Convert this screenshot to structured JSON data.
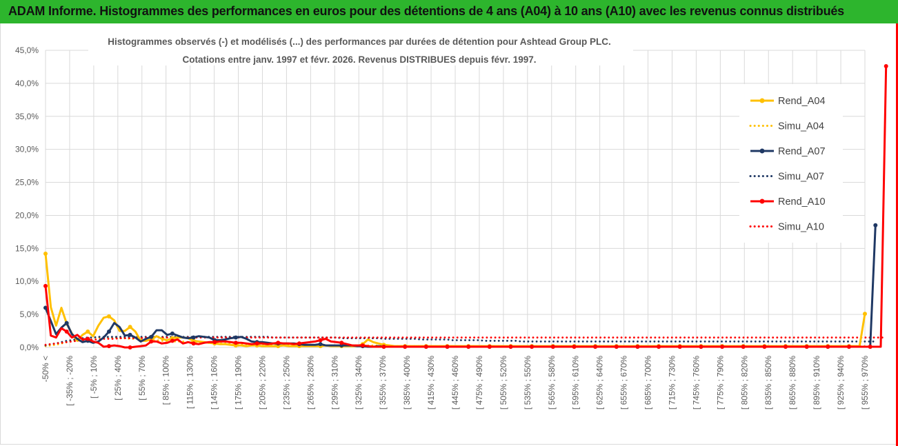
{
  "header": {
    "title": "ADAM Informe. Histogrammes des performances en euros pour des détentions de 4 ans (A04) à 10 ans (A10) avec les revenus connus distribués"
  },
  "colors": {
    "banner": "#2db52d",
    "accent_border": "#ff0000",
    "A04": "#ffc000",
    "A07": "#1f3864",
    "A10": "#ff0000"
  },
  "chart_data": {
    "type": "line",
    "title_line1": "Histogrammes observés (-) et modélisés (...) des performances par durées de détention pour Ashtead Group PLC.",
    "title_line2": "Cotations entre janv. 1997 et févr. 2026. Revenus DISTRIBUES depuis févr. 1997.",
    "ylim": [
      0,
      45
    ],
    "yticks": [
      "0,0%",
      "5,0%",
      "10,0%",
      "15,0%",
      "20,0%",
      "25,0%",
      "30,0%",
      "35,0%",
      "40,0%",
      "45,0%"
    ],
    "grid": true,
    "legend_position": "right",
    "x_tick_labels": [
      "-50% <",
      "[ -35% ; -20%",
      "[ -5% ; 10%",
      "[ 25% ; 40%",
      "[ 55% ; 70%",
      "[ 85% ; 100%",
      "[ 115% ; 130%",
      "[ 145% ; 160%",
      "[ 175% ; 190%",
      "[ 205% ; 220%",
      "[ 235% ; 250%",
      "[ 265% ; 280%",
      "[ 295% ; 310%",
      "[ 325% ; 340%",
      "[ 355% ; 370%",
      "[ 385% ; 400%",
      "[ 415% ; 430%",
      "[ 445% ; 460%",
      "[ 475% ; 490%",
      "[ 505% ; 520%",
      "[ 535% ; 550%",
      "[ 565% ; 580%",
      "[ 595% ; 610%",
      "[ 625% ; 640%",
      "[ 655% ; 670%",
      "[ 685% ; 700%",
      "[ 715% ; 730%",
      "[ 745% ; 760%",
      "[ 775% ; 790%",
      "[ 805% ; 820%",
      "[ 835% ; 850%",
      "[ 865% ; 880%",
      "[ 895% ; 910%",
      "[ 925% ; 940%",
      "[ 955% ; 970%"
    ],
    "series": [
      {
        "name": "Rend_A04",
        "style": "solid",
        "color": "#ffc000",
        "values": [
          14.2,
          6.1,
          3.3,
          6.0,
          3.6,
          2.1,
          1.0,
          1.9,
          2.4,
          1.7,
          3.3,
          4.5,
          4.7,
          4.1,
          2.5,
          2.5,
          3.1,
          2.4,
          1.0,
          1.0,
          1.2,
          1.7,
          1.3,
          1.1,
          1.4,
          1.5,
          1.5,
          1.4,
          1.0,
          0.9,
          0.8,
          0.7,
          0.6,
          0.5,
          0.5,
          0.4,
          0.3,
          0.3,
          0.2,
          0.3,
          0.3,
          0.2,
          0.2,
          0.2,
          0.2,
          0.3,
          0.2,
          0.2,
          0.2,
          0.2,
          0.2,
          0.2,
          0.2,
          0.3,
          0.2,
          0.2,
          0.2,
          0.2,
          0.2,
          0.2,
          0.5,
          1.2,
          0.8,
          0.6,
          0.4,
          0.3,
          0.2,
          0.2,
          0.2,
          0.2,
          0.2,
          0.2,
          0.2,
          0.2,
          0.2,
          0.2,
          0.2,
          0.2,
          0.2,
          0.2,
          0.2,
          0.2,
          0.2,
          0.2,
          0.2,
          0.2,
          0.2,
          0.2,
          0.2,
          0.2,
          0.2,
          0.2,
          0.2,
          0.2,
          0.2,
          0.2,
          0.2,
          0.2,
          0.2,
          0.2,
          0.2,
          0.2,
          0.2,
          0.2,
          0.2,
          0.2,
          0.2,
          0.2,
          0.2,
          0.2,
          0.2,
          0.2,
          0.2,
          0.2,
          0.2,
          0.2,
          0.2,
          0.2,
          0.2,
          0.2,
          0.2,
          0.2,
          0.2,
          0.2,
          0.2,
          0.2,
          0.2,
          0.2,
          0.2,
          0.2,
          0.2,
          0.2,
          0.2,
          0.2,
          0.2,
          0.2,
          0.2,
          0.2,
          0.2,
          0.2,
          0.2,
          0.2,
          0.2,
          0.2,
          0.2,
          0.2,
          0.2,
          0.2,
          0.2,
          0.2,
          0.2,
          0.2,
          0.2,
          0.2,
          0.2,
          5.1
        ]
      },
      {
        "name": "Simu_A04",
        "style": "dotted",
        "color": "#ffc000",
        "values": [
          0.2,
          0.3,
          0.4,
          0.6,
          0.8,
          1.0,
          1.2,
          1.3,
          1.4,
          1.5,
          1.5,
          1.5,
          1.5,
          1.5,
          1.4,
          1.4,
          1.3,
          1.3,
          1.2,
          1.2,
          1.1,
          1.1,
          1.0,
          1.0,
          0.9,
          0.9,
          0.9,
          0.8,
          0.8,
          0.8,
          0.7,
          0.7,
          0.7,
          0.6,
          0.6,
          0.6,
          0.6,
          0.5,
          0.5,
          0.5,
          0.5,
          0.5,
          0.5,
          0.4,
          0.4,
          0.4,
          0.4,
          0.4,
          0.4,
          0.4,
          0.4,
          0.3,
          0.3,
          0.3,
          0.3,
          0.3,
          0.3,
          0.3,
          0.3,
          0.3,
          0.3,
          0.3,
          0.3,
          0.3,
          0.3,
          0.3,
          0.2,
          0.2,
          0.2,
          0.2,
          0.2,
          0.2,
          0.2,
          0.2,
          0.2,
          0.2,
          0.2,
          0.2,
          0.2,
          0.2,
          0.2,
          0.2,
          0.2,
          0.2,
          0.2,
          0.2,
          0.2,
          0.2,
          0.2,
          0.2,
          0.2,
          0.2,
          0.2,
          0.2,
          0.2,
          0.2,
          0.2,
          0.2,
          0.2,
          0.2,
          0.2,
          0.2,
          0.2,
          0.2,
          0.2,
          0.2,
          0.2,
          0.2,
          0.2,
          0.2,
          0.2,
          0.2,
          0.2,
          0.2,
          0.2,
          0.2,
          0.2,
          0.2,
          0.2,
          0.2,
          0.2,
          0.2,
          0.2,
          0.2,
          0.2,
          0.2,
          0.2,
          0.2,
          0.2,
          0.2,
          0.2,
          0.2,
          0.2,
          0.2,
          0.2,
          0.2,
          0.2,
          0.2,
          0.2,
          0.2,
          0.2,
          0.2,
          0.2,
          0.2,
          0.2,
          0.2,
          0.2,
          0.2,
          0.2,
          0.2,
          0.2,
          0.2,
          0.2,
          0.2,
          0.2,
          0.2,
          0.2
        ]
      },
      {
        "name": "Rend_A07",
        "style": "solid",
        "color": "#1f3864",
        "values": [
          6.0,
          4.0,
          2.0,
          3.0,
          3.7,
          2.0,
          1.3,
          0.8,
          1.0,
          0.7,
          0.9,
          1.5,
          2.4,
          3.7,
          3.1,
          1.8,
          1.9,
          1.5,
          0.9,
          1.3,
          1.6,
          2.6,
          2.6,
          1.9,
          2.1,
          1.8,
          1.5,
          1.4,
          1.5,
          1.7,
          1.6,
          1.5,
          1.1,
          1.1,
          1.2,
          1.4,
          1.5,
          1.6,
          1.3,
          0.9,
          0.8,
          0.8,
          0.7,
          0.6,
          0.6,
          0.6,
          0.6,
          0.6,
          0.5,
          0.4,
          0.4,
          0.4,
          0.5,
          0.3,
          0.3,
          0.3,
          0.3,
          0.3,
          0.3,
          0.2,
          0.2,
          0.1,
          0.1,
          0.2,
          0.1,
          0.1,
          0.1,
          0.1,
          0.1,
          0.1,
          0.1,
          0.1,
          0.1,
          0.1,
          0.1,
          0.1,
          0.1,
          0.1,
          0.1,
          0.1,
          0.1,
          0.1,
          0.1,
          0.1,
          0.1,
          0.1,
          0.1,
          0.1,
          0.1,
          0.1,
          0.1,
          0.1,
          0.1,
          0.1,
          0.1,
          0.1,
          0.1,
          0.1,
          0.1,
          0.1,
          0.1,
          0.1,
          0.1,
          0.1,
          0.1,
          0.1,
          0.1,
          0.1,
          0.1,
          0.1,
          0.1,
          0.1,
          0.1,
          0.1,
          0.1,
          0.1,
          0.1,
          0.1,
          0.1,
          0.1,
          0.1,
          0.1,
          0.1,
          0.1,
          0.1,
          0.1,
          0.1,
          0.1,
          0.1,
          0.1,
          0.1,
          0.1,
          0.1,
          0.1,
          0.1,
          0.1,
          0.1,
          0.1,
          0.1,
          0.1,
          0.1,
          0.1,
          0.1,
          0.1,
          0.1,
          0.1,
          0.1,
          0.1,
          0.1,
          0.1,
          0.1,
          0.1,
          0.1,
          0.1,
          0.1,
          0.1,
          0.1,
          18.5
        ]
      },
      {
        "name": "Simu_A07",
        "style": "dotted",
        "color": "#1f3864",
        "values": [
          0.3,
          0.5,
          0.6,
          0.8,
          1.0,
          1.1,
          1.3,
          1.4,
          1.5,
          1.5,
          1.6,
          1.6,
          1.6,
          1.6,
          1.6,
          1.6,
          1.6,
          1.6,
          1.6,
          1.6,
          1.6,
          1.6,
          1.6,
          1.6,
          1.6,
          1.6,
          1.6,
          1.6,
          1.6,
          1.6,
          1.6,
          1.6,
          1.6,
          1.6,
          1.6,
          1.6,
          1.6,
          1.6,
          1.6,
          1.6,
          1.6,
          1.6,
          1.6,
          1.5,
          1.5,
          1.5,
          1.5,
          1.5,
          1.5,
          1.5,
          1.5,
          1.5,
          1.5,
          1.5,
          1.5,
          1.5,
          1.4,
          1.4,
          1.4,
          1.4,
          1.4,
          1.4,
          1.4,
          1.4,
          1.3,
          1.3,
          1.3,
          1.3,
          1.3,
          1.3,
          1.3,
          1.2,
          1.2,
          1.2,
          1.2,
          1.2,
          1.2,
          1.1,
          1.1,
          1.1,
          1.1,
          1.1,
          1.1,
          1.0,
          1.0,
          1.0,
          1.0,
          1.0,
          1.0,
          1.0,
          0.9,
          0.9,
          0.9,
          0.9,
          0.9,
          0.9,
          0.9,
          0.9,
          0.9,
          0.9,
          0.9,
          0.9,
          0.9,
          0.9,
          0.9,
          0.9,
          0.9,
          0.9,
          0.9,
          0.9,
          0.9,
          0.9,
          0.9,
          0.9,
          0.9,
          0.9,
          0.9,
          0.9,
          0.9,
          0.9,
          0.9,
          0.9,
          0.9,
          0.9,
          0.9,
          0.9,
          0.9,
          0.9,
          0.9,
          0.9,
          0.9,
          0.9,
          0.9,
          0.9,
          0.9,
          0.9,
          0.9,
          0.9,
          0.9,
          0.9,
          0.9,
          0.9,
          0.9,
          0.9,
          0.9,
          0.9,
          0.9,
          0.9,
          0.9,
          0.9,
          0.9,
          0.9,
          0.9,
          0.9,
          0.9,
          0.9,
          0.9,
          0.9
        ]
      },
      {
        "name": "Rend_A10",
        "style": "solid",
        "color": "#ff0000",
        "values": [
          9.3,
          1.8,
          1.5,
          2.9,
          2.4,
          1.5,
          1.9,
          1.2,
          1.3,
          0.9,
          0.7,
          0.1,
          0.2,
          0.3,
          0.2,
          0.0,
          0.0,
          0.1,
          0.2,
          0.3,
          0.9,
          0.9,
          0.6,
          0.7,
          1.0,
          1.2,
          0.6,
          0.8,
          0.6,
          0.5,
          0.7,
          0.8,
          0.8,
          0.9,
          0.9,
          0.8,
          0.7,
          0.7,
          0.6,
          0.5,
          0.6,
          0.6,
          0.5,
          0.6,
          0.7,
          0.6,
          0.6,
          0.5,
          0.6,
          0.7,
          0.8,
          0.9,
          1.1,
          1.3,
          0.9,
          0.8,
          0.7,
          0.5,
          0.3,
          0.3,
          0.3,
          0.2,
          0.1,
          0.1,
          0.1,
          0.1,
          0.1,
          0.1,
          0.1,
          0.1,
          0.1,
          0.1,
          0.1,
          0.1,
          0.1,
          0.1,
          0.1,
          0.1,
          0.1,
          0.1,
          0.1,
          0.1,
          0.1,
          0.1,
          0.1,
          0.1,
          0.1,
          0.1,
          0.1,
          0.1,
          0.1,
          0.1,
          0.1,
          0.1,
          0.1,
          0.1,
          0.1,
          0.1,
          0.1,
          0.1,
          0.1,
          0.1,
          0.1,
          0.1,
          0.1,
          0.1,
          0.1,
          0.1,
          0.1,
          0.1,
          0.1,
          0.1,
          0.1,
          0.1,
          0.1,
          0.1,
          0.1,
          0.1,
          0.1,
          0.1,
          0.1,
          0.1,
          0.1,
          0.1,
          0.1,
          0.1,
          0.1,
          0.1,
          0.1,
          0.1,
          0.1,
          0.1,
          0.1,
          0.1,
          0.1,
          0.1,
          0.1,
          0.1,
          0.1,
          0.1,
          0.1,
          0.1,
          0.1,
          0.1,
          0.1,
          0.1,
          0.1,
          0.1,
          0.1,
          0.1,
          0.1,
          0.1,
          0.1,
          0.1,
          0.1,
          0.1,
          0.1,
          0.1,
          0.1,
          42.6
        ]
      },
      {
        "name": "Simu_A10",
        "style": "dotted",
        "color": "#ff0000",
        "values": [
          0.4,
          0.5,
          0.6,
          0.7,
          0.8,
          0.9,
          1.0,
          1.1,
          1.1,
          1.2,
          1.2,
          1.3,
          1.3,
          1.3,
          1.4,
          1.4,
          1.4,
          1.4,
          1.4,
          1.5,
          1.5,
          1.5,
          1.5,
          1.5,
          1.5,
          1.5,
          1.5,
          1.5,
          1.5,
          1.5,
          1.5,
          1.5,
          1.5,
          1.5,
          1.5,
          1.5,
          1.5,
          1.5,
          1.5,
          1.5,
          1.5,
          1.5,
          1.5,
          1.5,
          1.5,
          1.5,
          1.5,
          1.5,
          1.5,
          1.5,
          1.5,
          1.5,
          1.5,
          1.5,
          1.5,
          1.5,
          1.5,
          1.5,
          1.5,
          1.5,
          1.5,
          1.5,
          1.5,
          1.5,
          1.5,
          1.5,
          1.5,
          1.5,
          1.5,
          1.5,
          1.5,
          1.5,
          1.5,
          1.5,
          1.5,
          1.5,
          1.5,
          1.5,
          1.5,
          1.5,
          1.5,
          1.5,
          1.5,
          1.5,
          1.5,
          1.5,
          1.5,
          1.5,
          1.5,
          1.5,
          1.5,
          1.5,
          1.5,
          1.5,
          1.5,
          1.5,
          1.5,
          1.5,
          1.5,
          1.5,
          1.5,
          1.5,
          1.5,
          1.5,
          1.5,
          1.5,
          1.5,
          1.5,
          1.5,
          1.5,
          1.5,
          1.5,
          1.5,
          1.5,
          1.5,
          1.5,
          1.5,
          1.5,
          1.5,
          1.5,
          1.5,
          1.5,
          1.5,
          1.5,
          1.5,
          1.5,
          1.5,
          1.5,
          1.5,
          1.5,
          1.5,
          1.5,
          1.5,
          1.5,
          1.5,
          1.5,
          1.5,
          1.5,
          1.5,
          1.5,
          1.5,
          1.5,
          1.5,
          1.5,
          1.5,
          1.5,
          1.5,
          1.5,
          1.5,
          1.5,
          1.5,
          1.5,
          1.5,
          1.5,
          1.5,
          1.5,
          1.5,
          1.5,
          1.5,
          1.5
        ]
      }
    ]
  }
}
